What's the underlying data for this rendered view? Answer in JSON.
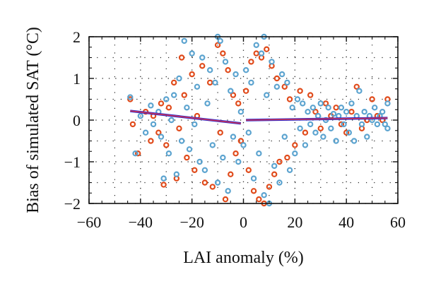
{
  "chart_data": {
    "type": "scatter",
    "title": "",
    "xlabel": "LAI anomaly (%)",
    "ylabel": "Bias of simulated SAT (°C)",
    "xlim": [
      -60,
      60
    ],
    "ylim": [
      -2,
      2
    ],
    "xticks": [
      -60,
      -40,
      -20,
      0,
      20,
      40,
      60
    ],
    "yticks": [
      -2,
      -1,
      0,
      1,
      2
    ],
    "xtick_labels": [
      "−60",
      "−40",
      "−20",
      "0",
      "20",
      "40",
      "60"
    ],
    "ytick_labels": [
      "−2",
      "−1",
      "0",
      "1",
      "2"
    ],
    "grid": "dotted",
    "legend": "none",
    "colors": {
      "series_a_marker": "#e04a1a",
      "series_b_marker": "#5ba3cf",
      "fit_line_outer": "#2a2ad0",
      "fit_line_inner": "#d8324a"
    },
    "series": [
      {
        "marker": "open-circle",
        "points": [
          [
            -44,
            0.5
          ],
          [
            -43,
            -0.1
          ],
          [
            -41,
            -0.8
          ],
          [
            -38,
            0.2
          ],
          [
            -36,
            -0.5
          ],
          [
            -35,
            0.1
          ],
          [
            -33,
            -0.3
          ],
          [
            -32,
            0.4
          ],
          [
            -31,
            -1.55
          ],
          [
            -30,
            -0.6
          ],
          [
            -29,
            0.3
          ],
          [
            -27,
            0.9
          ],
          [
            -26,
            -1.4
          ],
          [
            -25,
            -0.2
          ],
          [
            -24,
            1.5
          ],
          [
            -23,
            0.6
          ],
          [
            -22,
            -0.9
          ],
          [
            -20,
            1.1
          ],
          [
            -19,
            -1.2
          ],
          [
            -18,
            0.1
          ],
          [
            -16,
            1.3
          ],
          [
            -15,
            -1.5
          ],
          [
            -13,
            0.9
          ],
          [
            -12,
            -1.6
          ],
          [
            -10,
            1.8
          ],
          [
            -9,
            -0.3
          ],
          [
            -8,
            1.6
          ],
          [
            -7,
            -1.9
          ],
          [
            -6,
            1.2
          ],
          [
            -5,
            -1.3
          ],
          [
            -4,
            0.6
          ],
          [
            -3,
            -0.8
          ],
          [
            -2,
            0.4
          ],
          [
            -1,
            -0.5
          ],
          [
            1,
            0.7
          ],
          [
            2,
            -1.2
          ],
          [
            3,
            1.4
          ],
          [
            4,
            -1.7
          ],
          [
            5,
            1.6
          ],
          [
            6,
            -1.9
          ],
          [
            7,
            1.5
          ],
          [
            8,
            -2.0
          ],
          [
            9,
            1.7
          ],
          [
            10,
            -1.6
          ],
          [
            11,
            1.3
          ],
          [
            12,
            -1.3
          ],
          [
            13,
            1.0
          ],
          [
            14,
            -1.0
          ],
          [
            16,
            0.8
          ],
          [
            17,
            -0.9
          ],
          [
            18,
            0.5
          ],
          [
            20,
            -0.6
          ],
          [
            22,
            0.7
          ],
          [
            24,
            -0.3
          ],
          [
            26,
            0.6
          ],
          [
            28,
            0.2
          ],
          [
            30,
            -0.2
          ],
          [
            32,
            0.4
          ],
          [
            34,
            0.1
          ],
          [
            36,
            0.3
          ],
          [
            38,
            -0.1
          ],
          [
            40,
            -0.3
          ],
          [
            42,
            0.2
          ],
          [
            44,
            0.8
          ],
          [
            46,
            -0.2
          ],
          [
            48,
            0.0
          ],
          [
            50,
            0.5
          ],
          [
            52,
            0.1
          ],
          [
            54,
            0.0
          ],
          [
            56,
            0.5
          ]
        ]
      },
      {
        "marker": "open-circle",
        "points": [
          [
            -44,
            0.55
          ],
          [
            -42,
            -0.8
          ],
          [
            -40,
            0.1
          ],
          [
            -38,
            -0.3
          ],
          [
            -36,
            0.35
          ],
          [
            -35,
            -0.1
          ],
          [
            -33,
            0.2
          ],
          [
            -32,
            -0.4
          ],
          [
            -31,
            -1.4
          ],
          [
            -30,
            0.5
          ],
          [
            -29,
            -0.8
          ],
          [
            -28,
            0.0
          ],
          [
            -27,
            0.6
          ],
          [
            -26,
            -1.3
          ],
          [
            -25,
            1.0
          ],
          [
            -24,
            -0.5
          ],
          [
            -23,
            1.9
          ],
          [
            -22,
            0.3
          ],
          [
            -21,
            -0.7
          ],
          [
            -20,
            1.6
          ],
          [
            -19,
            -0.1
          ],
          [
            -18,
            0.8
          ],
          [
            -17,
            -1.0
          ],
          [
            -16,
            1.5
          ],
          [
            -15,
            -1.2
          ],
          [
            -14,
            0.4
          ],
          [
            -13,
            1.2
          ],
          [
            -12,
            -0.6
          ],
          [
            -11,
            0.9
          ],
          [
            -10,
            -1.5
          ],
          [
            -9,
            1.9
          ],
          [
            -8,
            -0.9
          ],
          [
            -7,
            1.4
          ],
          [
            -6,
            -1.7
          ],
          [
            -5,
            0.7
          ],
          [
            -4,
            -0.4
          ],
          [
            -3,
            1.1
          ],
          [
            -2,
            -1.0
          ],
          [
            -1,
            0.2
          ],
          [
            0,
            -0.6
          ],
          [
            1,
            1.2
          ],
          [
            2,
            -0.3
          ],
          [
            3,
            0.9
          ],
          [
            4,
            -1.4
          ],
          [
            5,
            1.8
          ],
          [
            6,
            -0.8
          ],
          [
            7,
            1.6
          ],
          [
            8,
            -1.8
          ],
          [
            9,
            0.6
          ],
          [
            10,
            -2.0
          ],
          [
            11,
            1.4
          ],
          [
            12,
            -1.1
          ],
          [
            13,
            0.8
          ],
          [
            14,
            -1.5
          ],
          [
            15,
            1.1
          ],
          [
            16,
            -0.4
          ],
          [
            17,
            0.9
          ],
          [
            18,
            -1.2
          ],
          [
            19,
            0.3
          ],
          [
            20,
            -0.8
          ],
          [
            21,
            0.5
          ],
          [
            22,
            -0.2
          ],
          [
            23,
            0.4
          ],
          [
            24,
            -0.6
          ],
          [
            25,
            0.2
          ],
          [
            26,
            -0.1
          ],
          [
            27,
            0.3
          ],
          [
            28,
            -0.3
          ],
          [
            29,
            0.1
          ],
          [
            30,
            0.4
          ],
          [
            31,
            -0.4
          ],
          [
            32,
            0.0
          ],
          [
            33,
            0.3
          ],
          [
            34,
            -0.2
          ],
          [
            35,
            0.15
          ],
          [
            36,
            -0.5
          ],
          [
            37,
            0.1
          ],
          [
            38,
            0.3
          ],
          [
            39,
            -0.1
          ],
          [
            40,
            0.2
          ],
          [
            41,
            -0.3
          ],
          [
            42,
            0.4
          ],
          [
            43,
            -0.5
          ],
          [
            44,
            0.1
          ],
          [
            45,
            0.7
          ],
          [
            46,
            -0.1
          ],
          [
            47,
            0.2
          ],
          [
            48,
            -0.4
          ],
          [
            49,
            0.1
          ],
          [
            50,
            0.0
          ],
          [
            51,
            0.3
          ],
          [
            52,
            -0.1
          ],
          [
            53,
            0.1
          ],
          [
            54,
            0.2
          ],
          [
            55,
            -0.1
          ],
          [
            56,
            0.4
          ],
          [
            56,
            -0.2
          ],
          [
            8,
            2.0
          ],
          [
            -10,
            2.0
          ]
        ]
      }
    ],
    "fit_lines": [
      {
        "x": [
          -44,
          -1
        ],
        "y": [
          0.22,
          -0.08
        ]
      },
      {
        "x": [
          1,
          56
        ],
        "y": [
          0.0,
          0.05
        ]
      }
    ]
  }
}
